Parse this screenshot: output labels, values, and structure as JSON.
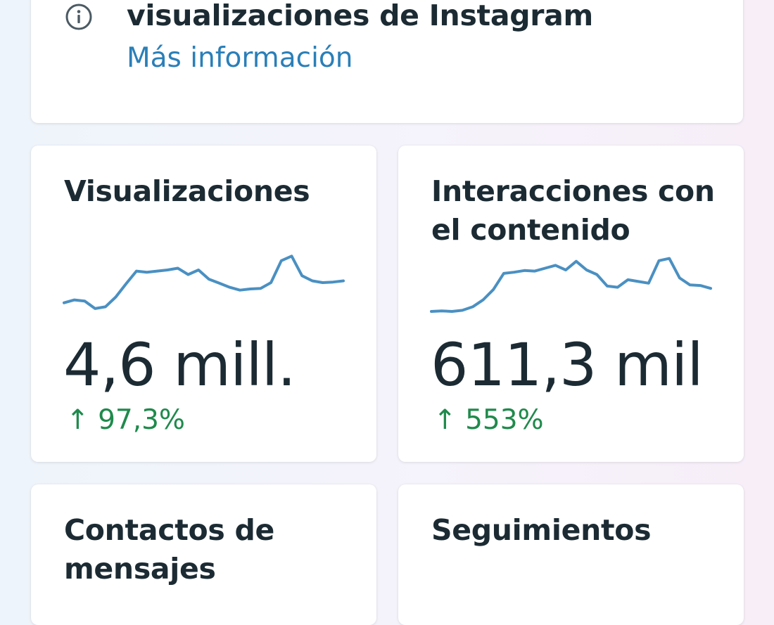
{
  "info_banner": {
    "title": "visualizaciones de Instagram",
    "link": "Más información",
    "icon": "info-icon"
  },
  "metrics": [
    {
      "title": "Visualizaciones",
      "value": "4,6 mill.",
      "change": "↑ 97,3%",
      "trend": [
        0.15,
        0.2,
        0.18,
        0.05,
        0.08,
        0.25,
        0.48,
        0.7,
        0.68,
        0.7,
        0.72,
        0.75,
        0.64,
        0.72,
        0.56,
        0.49,
        0.42,
        0.37,
        0.39,
        0.4,
        0.5,
        0.88,
        0.96,
        0.62,
        0.53,
        0.5,
        0.51,
        0.53
      ]
    },
    {
      "title": "Interacciones con el contenido",
      "value": "611,3 mil",
      "change": "↑ 553%",
      "trend": [
        0.0,
        0.01,
        0.0,
        0.02,
        0.08,
        0.2,
        0.38,
        0.66,
        0.68,
        0.71,
        0.7,
        0.75,
        0.8,
        0.72,
        0.87,
        0.72,
        0.64,
        0.44,
        0.42,
        0.55,
        0.52,
        0.49,
        0.88,
        0.92,
        0.58,
        0.46,
        0.45,
        0.4
      ]
    }
  ],
  "bottom_cards": [
    {
      "title": "Contactos de mensajes"
    },
    {
      "title": "Seguimientos"
    }
  ],
  "colors": {
    "sparkline": "#4a90c2",
    "positive": "#1f8a4c",
    "link": "#2a7fb8"
  }
}
